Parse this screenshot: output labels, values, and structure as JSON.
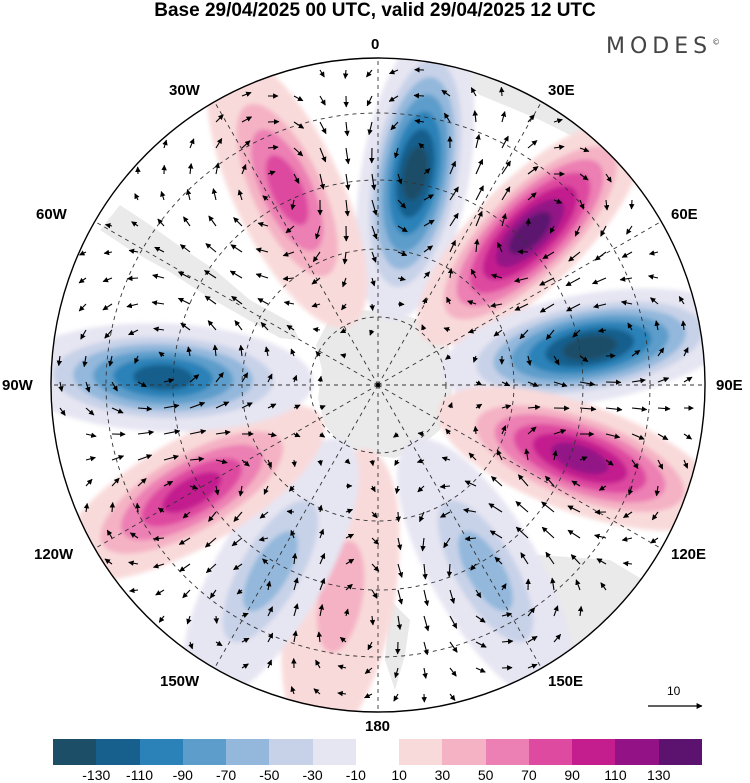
{
  "title": "Base 29/04/2025 00 UTC, valid 29/04/2025 12 UTC",
  "brand": "MODES",
  "brand_mark": "©",
  "longitude_labels": {
    "lon_0": "0",
    "lon_30e": "30E",
    "lon_60e": "60E",
    "lon_90e": "90E",
    "lon_120e": "120E",
    "lon_150e": "150E",
    "lon_180": "180",
    "lon_150w": "150W",
    "lon_120w": "120W",
    "lon_90w": "90W",
    "lon_60w": "60W",
    "lon_30w": "30W"
  },
  "vector_reference": "10",
  "colorbar": {
    "colors": [
      "#1d4e68",
      "#175f8d",
      "#2b82b8",
      "#5d9dcb",
      "#93b8dc",
      "#c7d2e8",
      "#e6e5f2",
      "#ffffff",
      "#f9dada",
      "#f4b2c4",
      "#ec7fb3",
      "#de4aa0",
      "#c31d8e",
      "#931387",
      "#5b136f"
    ],
    "ticks": [
      "-130",
      "-110",
      "-90",
      "-70",
      "-50",
      "-30",
      "-10",
      "10",
      "30",
      "50",
      "70",
      "90",
      "110",
      "130"
    ]
  },
  "anomaly_centers": [
    {
      "name": "low-0",
      "lon": 10,
      "value": -130
    },
    {
      "name": "high-40e",
      "lon": 45,
      "value": 130
    },
    {
      "name": "low-70e",
      "lon": 80,
      "value": -130
    },
    {
      "name": "high-110e",
      "lon": 110,
      "value": 110
    },
    {
      "name": "low-150e",
      "lon": 150,
      "value": -50
    },
    {
      "name": "high-170w",
      "lon": -170,
      "value": 30
    },
    {
      "name": "low-150w",
      "lon": -150,
      "value": -50
    },
    {
      "name": "high-120w",
      "lon": -120,
      "value": 90
    },
    {
      "name": "low-90w",
      "lon": -88,
      "value": -110
    },
    {
      "name": "high-40w",
      "lon": -25,
      "value": 70
    }
  ]
}
